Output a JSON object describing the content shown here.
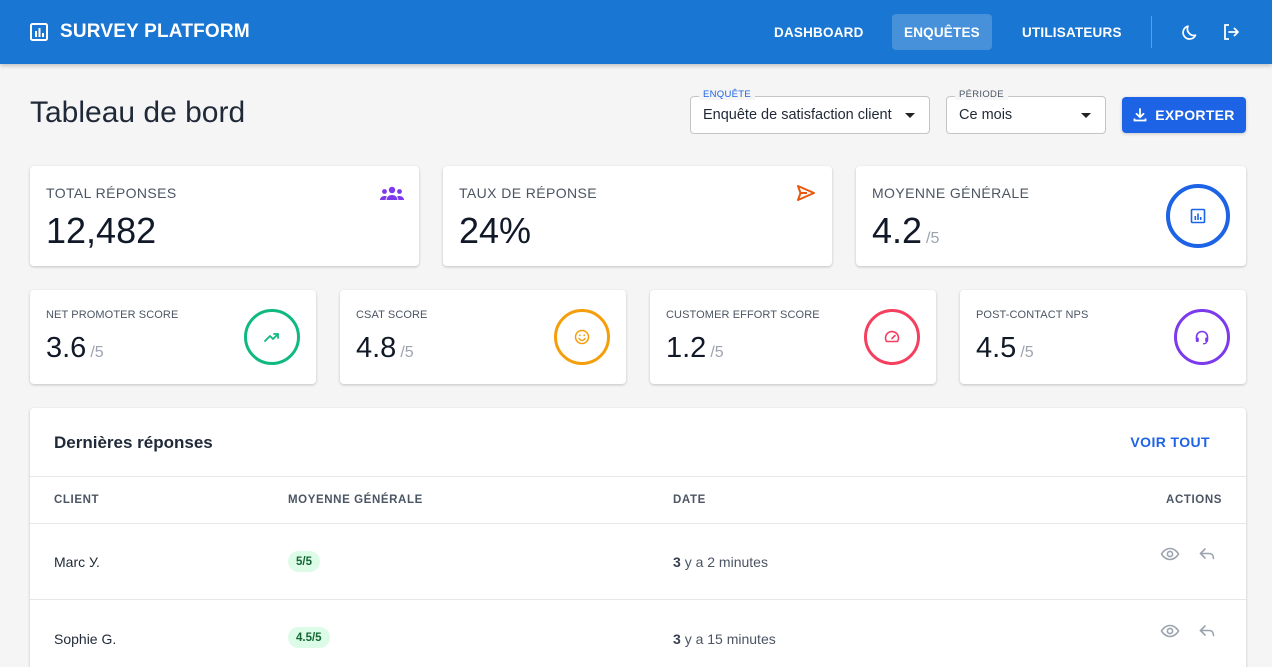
{
  "app": {
    "title": "SURVEY PLATFORM",
    "nav": [
      {
        "label": "DASHBOARD"
      },
      {
        "label": "ENQUÊTES"
      },
      {
        "label": "UTILISATEURS"
      }
    ],
    "icons": {
      "brand": "bar-chart-icon",
      "theme": "moon-icon",
      "logout": "logout-icon"
    },
    "primary_color": "#1976d2"
  },
  "header": {
    "title": "Tableau de bord",
    "survey_select": {
      "label": "ENQUÊTE",
      "value": "Enquête de satisfaction client"
    },
    "period_select": {
      "label": "PÉRIODE",
      "value": "Ce mois"
    },
    "export_label": "EXPORTER"
  },
  "stats": {
    "total": {
      "label": "TOTAL RÉPONSES",
      "value": "12,482",
      "icon": "group-icon",
      "color": "#7c3aed"
    },
    "rate": {
      "label": "TAUX DE RÉPONSE",
      "value": "24%",
      "icon": "send-icon",
      "color": "#ea580c"
    },
    "average": {
      "label": "MOYENNE GÉNÉRALE",
      "value": "4.2",
      "den": "/5",
      "icon": "chart-icon",
      "color": "#1d63e5"
    }
  },
  "scores": [
    {
      "label": "NET PROMOTER SCORE",
      "value": "3.6",
      "den": "/5",
      "icon": "trending-up-icon",
      "color": "#10b981"
    },
    {
      "label": "CSAT SCORE",
      "value": "4.8",
      "den": "/5",
      "icon": "smiley-icon",
      "color": "#f59e0b"
    },
    {
      "label": "CUSTOMER EFFORT SCORE",
      "value": "1.2",
      "den": "/5",
      "icon": "speedometer-icon",
      "color": "#f43f5e"
    },
    {
      "label": "POST-CONTACT NPS",
      "value": "4.5",
      "den": "/5",
      "icon": "headset-icon",
      "color": "#7c3aed"
    }
  ],
  "responses": {
    "title": "Dernières réponses",
    "view_all": "VOIR TOUT",
    "columns": [
      "CLIENT",
      "MOYENNE GÉNÉRALE",
      "DATE",
      "ACTIONS"
    ],
    "rows": [
      {
        "client": "Marc У.",
        "score": "5/5",
        "date_num": "3",
        "date_rest": "y a 2 minutes"
      },
      {
        "client": "Sophie G.",
        "score": "4.5/5",
        "date_num": "3",
        "date_rest": "y a 15 minutes"
      }
    ]
  }
}
